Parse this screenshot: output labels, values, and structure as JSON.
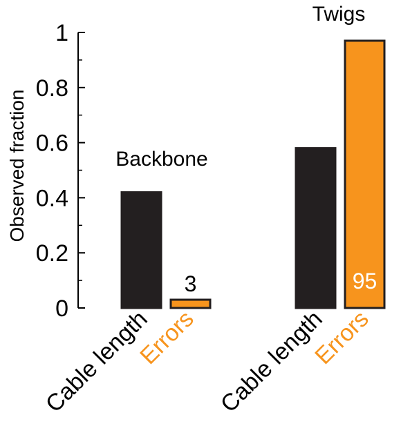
{
  "chart_data": {
    "type": "bar",
    "title": "",
    "xlabel": "",
    "ylabel": "Observed fraction",
    "ylim": [
      0,
      1
    ],
    "yticks": [
      0,
      0.2,
      0.4,
      0.6,
      0.8,
      1
    ],
    "ytick_labels": [
      "0",
      "0.2",
      "0.4",
      "0.6",
      "0.8",
      "1"
    ],
    "grid": false,
    "groups": [
      {
        "name": "Backbone",
        "bars": [
          {
            "category": "Cable length",
            "value": 0.42,
            "color": "#231f20",
            "annotation": ""
          },
          {
            "category": "Errors",
            "value": 0.03,
            "color": "#f7941d",
            "annotation": "3"
          }
        ]
      },
      {
        "name": "Twigs",
        "bars": [
          {
            "category": "Cable length",
            "value": 0.58,
            "color": "#231f20",
            "annotation": ""
          },
          {
            "category": "Errors",
            "value": 0.97,
            "color": "#f7941d",
            "annotation": "95"
          }
        ]
      }
    ],
    "category_label_colors": {
      "Cable length": "#000000",
      "Errors": "#f7941d"
    }
  }
}
